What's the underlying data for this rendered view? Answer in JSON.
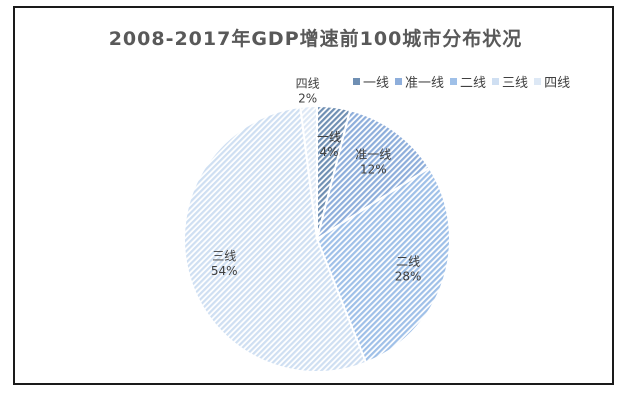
{
  "chart_data": {
    "type": "pie",
    "title": "2008-2017年GDP增速前100城市分布状况",
    "legend_position": "top-right",
    "categories": [
      "一线",
      "准一线",
      "二线",
      "三线",
      "四线"
    ],
    "values": [
      4,
      12,
      28,
      54,
      2
    ],
    "labels": [
      "4%",
      "12%",
      "28%",
      "54%",
      "2%"
    ],
    "colors": [
      "#6f8fb3",
      "#8eaedb",
      "#9fc0e8",
      "#cfdff2",
      "#dde8f5"
    ]
  }
}
